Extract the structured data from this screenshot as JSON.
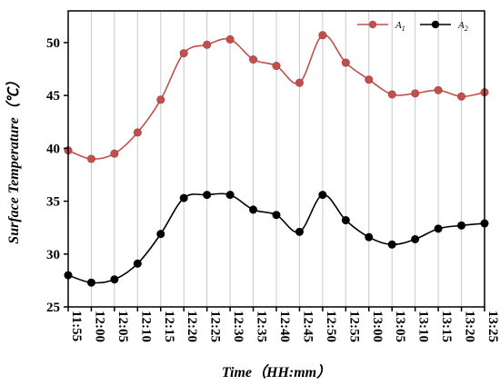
{
  "chart_data": {
    "type": "line",
    "title": "",
    "xlabel": "Time（HH:mm）",
    "ylabel": "Surface Temperature（℃）",
    "ylim": [
      25,
      53
    ],
    "yticks": [
      25,
      30,
      35,
      40,
      45,
      50
    ],
    "grid": "vertical",
    "legend_position": "top-right",
    "categories": [
      "11:55",
      "12:00",
      "12:05",
      "12:10",
      "12:15",
      "12:20",
      "12:25",
      "12:30",
      "12:35",
      "12:40",
      "12:45",
      "12:50",
      "12:55",
      "13:00",
      "13:05",
      "13:10",
      "13:15",
      "13:20",
      "13:25"
    ],
    "series": [
      {
        "name": "A1",
        "name_base": "A",
        "name_sub": "1",
        "color": "#c0504d",
        "values": [
          39.8,
          39.0,
          39.5,
          41.5,
          44.6,
          49.0,
          49.8,
          50.3,
          48.4,
          47.8,
          46.2,
          50.7,
          48.1,
          46.5,
          45.1,
          45.2,
          45.5,
          44.9,
          45.3
        ]
      },
      {
        "name": "A2",
        "name_base": "A",
        "name_sub": "2",
        "color": "#000000",
        "values": [
          28.0,
          27.3,
          27.6,
          29.1,
          31.9,
          35.3,
          35.6,
          35.6,
          34.2,
          33.7,
          32.1,
          35.6,
          33.2,
          31.6,
          30.9,
          31.4,
          32.4,
          32.7,
          32.9
        ]
      }
    ]
  }
}
